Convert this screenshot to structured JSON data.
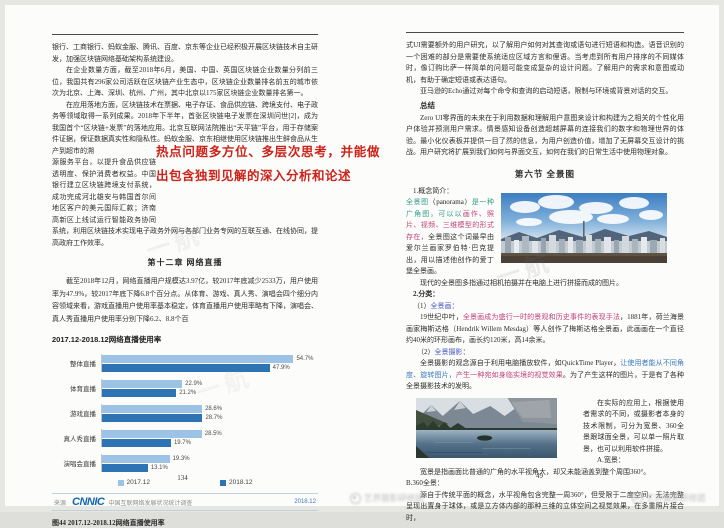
{
  "left_page": {
    "p1": "银行、工商银行、蚂蚁金服、腾讯、百度、京东等企业已经积极开展区块链技术自主研发，加强区块链网络基础架构系统建设。",
    "p2": "在企业数量方面，截至2018年6月，美国、中国、英国区块链企业数量分列前三位，我国共有296家公司活跃在区块链产业生态中，区块链企业数量排名前五的城市依次为北京、上海、深圳、杭州、广州，其中北京以175家区块链企业数量排名第一。",
    "p3a": "在应用落地方面，区块链技术在票据、电子存证、食品供应链、跨境支付、电子政务等领域取得一系列成果。2018年下半年，首张区块链电子发票在深圳问世[2]，成为我国首个“区块链+发票”的落地应用。北京互联网法院推出“天平链”平台，用于存储案件证据，保证数据真实性和隐私性。蚂蚁金服、京东相继使用区块链推出生鲜食品从生产到超市的溯",
    "p3b": "源服务平台，以提升食品供应链透明度、保护消费者权益。中国银行建立区块链跨境支付系统，成功完成河北雄安与韩国首尔间地区客户的美元国际汇款；济南高新区上线试运行智能政务协同系统，利用区块链技术实现电子政务外网与各部门业务专网的互联互通、在线协同，提高政府工作效率。",
    "annotation": "热点问题多方位、多层次思考，并能做出包含独到见解的深入分析和论述",
    "chapter_title": "第十二章  网络直播",
    "p4": "截至2018年12月，网络直播用户规模达3.97亿，较2017年底减少2533万，用户使用率为47.9%，较2017年底下降6.8个百分点。从体育、游戏、真人秀、演唱会四个细分内容领域来看，游戏直播用户使用率基本稳定，体育直播用户使用率略有下降，演唱会、真人秀直播用户使用率分别下降6.2、8.8个百",
    "source": {
      "label": "来源",
      "logo": "CNNIC",
      "desc": "中国互联网络发展状况统计调查",
      "date": "2018.12"
    },
    "caption": "图44  2017.12-2018.12网络直播使用率",
    "page_number": "134"
  },
  "chart_data": {
    "type": "bar",
    "orientation": "horizontal",
    "title": "2017.12-2018.12网络直播使用率",
    "categories": [
      "整体直播",
      "体育直播",
      "游戏直播",
      "真人秀直播",
      "演唱会直播"
    ],
    "series": [
      {
        "name": "2017.12",
        "color": "#9cc3e6",
        "values": [
          54.7,
          22.9,
          28.6,
          28.5,
          19.3
        ]
      },
      {
        "name": "2018.12",
        "color": "#2e74b5",
        "values": [
          47.9,
          21.2,
          28.7,
          19.7,
          13.1
        ]
      }
    ],
    "value_suffix": "%",
    "xlim": [
      0,
      60
    ],
    "legend_position": "bottom",
    "grid": false
  },
  "right_page": {
    "p1": "式UI需要额外的用户研究，以了解用户如何对其查询或语句进行短语和构造。语音识别的一个困难的部分是需要使系统适应区域方言和俚语。当考虑到所有用户排序的不同媒体时，像订购比萨一样简单的问题可能变成复杂的设计问题。了解用户的需求和意图或动机，有助于确定短语或表达语句。",
    "p2": "亚马逊的Echo通过对每个命令和查询的启动短语，限制与环境或背景对话的交互。",
    "summary_heading": "总结",
    "p3": "Zero UI零界面的未来在于利用数据和理解用户意图来设计和构建为之相关的个性化用户体验并预测用户需求。情景感知设备创造超越屏幕的连接我们的数字和物理世界的体验。最小化仪表板并提供一目了然的信息，为用户创造价值，增加了无屏幕交互设计的挑战。用户研究将扩展到我们如何与界面交互，如何在我们的日常生活中使用物理对象。",
    "section_title": "第六节  全景图",
    "concept_heading": "1.概念简介：",
    "concept_segments": [
      {
        "t": "全景图",
        "c": "#2f9d8a"
      },
      {
        "t": "（panorama）",
        "c": "#222222"
      },
      {
        "t": "是一种广角图，可以以",
        "c": "#2f9d8a"
      },
      {
        "t": "画作、照片、视频、三维模型的形式存在，",
        "c": "#c2417c"
      },
      {
        "t": "全景图这个词最早由爱尔兰画家罗伯特·巴克提出，用以描述他创作的爱丁堡全景画。",
        "c": ""
      }
    ],
    "p5": "现代的全景图多指通过相机拍摄并在电脑上进行拼接而成的图片。",
    "class_heading": "2.分类：",
    "sub1_segments": [
      {
        "t": "（1）",
        "c": ""
      },
      {
        "t": "全景画",
        "c": "#4a5bc4"
      },
      {
        "t": "：",
        "c": ""
      }
    ],
    "p6_segments": [
      {
        "t": "19世纪中叶，",
        "c": ""
      },
      {
        "t": "全景画成为盛行一时的景观和历史事件的表现手法",
        "c": "#c2417c"
      },
      {
        "t": "，1881年，荷兰海景画家梅斯达格（Hendrik Willem Mesdag）等人创作了梅斯达格全景画，此画画在一个直径约40米的环形画布，画长约120米，高14余米。",
        "c": ""
      }
    ],
    "sub2_segments": [
      {
        "t": "（2）",
        "c": ""
      },
      {
        "t": "全景摄影",
        "c": "#4a5bc4"
      },
      {
        "t": "：",
        "c": ""
      }
    ],
    "p7_segments": [
      {
        "t": "全景摄影的观念源自于利用电脑播放软件，如QuickTime Player，",
        "c": ""
      },
      {
        "t": "让使用者能从不同角度、旋转图片，",
        "c": "#3a7bbf"
      },
      {
        "t": "产生一种宛如身临实境的视觉效果",
        "c": "#c2417c"
      },
      {
        "t": "。为了产生这样的图片，于是有了各种全景摄影技术的发明。",
        "c": ""
      }
    ],
    "p8": "在实际的应用上，根据使用者需求的不同，或摄影者本身的技术限制，可分为宽景、360全景跟球面全景，可以单一照片取景，也可以利用软件拼接。",
    "a_heading": "A.宽景：",
    "p9": "宽景是指画面比普通的广角的水平视角大，却又未能涵盖到整个周围360°。",
    "b_heading": "B.360全景：",
    "p10": "源自于传统平面的概念，水平视角包含完整一周360°，但受限于二度空间，无法完整呈现出置身于球体，或是立方体内部的那种三维的立体空间之视觉效果，在多重照片接合时，",
    "page_number": "49"
  },
  "watermarks": {
    "diagonal_text": "一航",
    "corner_text": "艺界摄影研修团"
  },
  "colors": {
    "annotation_red": "#cc231b",
    "bar_2017": "#9cc3e6",
    "bar_2018": "#2e74b5",
    "cnnic_blue": "#1566b3",
    "teal_text": "#2f9d8a",
    "magenta_text": "#c2417c",
    "blue_label": "#4a5bc4"
  }
}
